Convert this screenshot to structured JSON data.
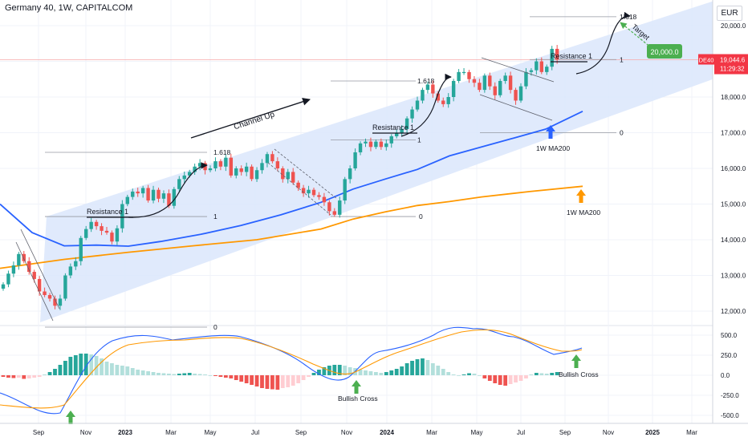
{
  "header": {
    "title": "Germany 40, 1W, CAPITALCOM",
    "currency": "EUR"
  },
  "colors": {
    "up": "#26a69a",
    "down": "#ef5350",
    "channel": "#dbe6fb",
    "ma_blue": "#2962ff",
    "ma_orange": "#ff9800",
    "target_green": "#4caf50",
    "price_tag": "#f23645"
  },
  "price_tag": {
    "symbol": "DE40",
    "price": "19,044.6",
    "countdown": "11:29:32"
  },
  "target_badge": "20,000.0",
  "chart_data": [
    {
      "type": "candlestick",
      "title": "Germany 40, 1W, CAPITALCOM",
      "x_ticks": [
        "Sep",
        "Nov",
        "2023",
        "Mar",
        "May",
        "Jul",
        "Sep",
        "Nov",
        "2024",
        "Mar",
        "May",
        "Jul",
        "Sep",
        "Nov",
        "2025",
        "Mar"
      ],
      "y_ticks": [
        "12,000.0",
        "13,000.0",
        "14,000.0",
        "15,000.0",
        "16,000.0",
        "17,000.0",
        "18,000.0",
        "19,000.0",
        "20,000.0"
      ],
      "ylim": [
        11500,
        20400
      ],
      "close_series": [
        12750,
        13050,
        13280,
        13600,
        13400,
        13100,
        12900,
        12550,
        12450,
        12350,
        12150,
        12350,
        13000,
        13250,
        13400,
        14050,
        14300,
        14500,
        14380,
        14250,
        14200,
        13950,
        14320,
        15000,
        15200,
        15350,
        15300,
        15450,
        15100,
        15400,
        15150,
        15300,
        14950,
        15420,
        15700,
        15800,
        15900,
        16050,
        16150,
        15950,
        16000,
        16200,
        16050,
        16300,
        15800,
        16000,
        15900,
        16050,
        15700,
        15950,
        16150,
        16400,
        16200,
        16000,
        15700,
        15900,
        15600,
        15450,
        15300,
        15400,
        15250,
        15200,
        15050,
        14800,
        14700,
        15100,
        15700,
        16000,
        16450,
        16700,
        16750,
        16600,
        16750,
        16600,
        16700,
        16900,
        17000,
        17100,
        17400,
        17650,
        17900,
        18200,
        18350,
        18100,
        17900,
        17800,
        18000,
        18450,
        18700,
        18700,
        18500,
        18400,
        18200,
        18600,
        18300,
        18050,
        18450,
        18600,
        18200,
        17900,
        18300,
        18700,
        18750,
        19000,
        18700,
        18850,
        19350,
        19050
      ],
      "moving_averages": [
        {
          "name": "1W MA200",
          "color": "#2962ff",
          "points": [
            [
              0,
              15000
            ],
            [
              40,
              14200
            ],
            [
              80,
              13830
            ],
            [
              120,
              13850
            ],
            [
              160,
              13820
            ],
            [
              200,
              13950
            ],
            [
              250,
              14150
            ],
            [
              300,
              14400
            ],
            [
              350,
              14700
            ],
            [
              400,
              15050
            ],
            [
              440,
              15420
            ],
            [
              480,
              15700
            ],
            [
              520,
              15970
            ],
            [
              560,
              16350
            ],
            [
              600,
              16600
            ],
            [
              640,
              16850
            ],
            [
              680,
              17100
            ],
            [
              726,
              17600
            ]
          ]
        },
        {
          "name": "1W MA200",
          "color": "#ff9800",
          "points": [
            [
              0,
              13200
            ],
            [
              80,
              13450
            ],
            [
              160,
              13650
            ],
            [
              240,
              13830
            ],
            [
              320,
              14000
            ],
            [
              400,
              14300
            ],
            [
              440,
              14580
            ],
            [
              480,
              14780
            ],
            [
              520,
              14960
            ],
            [
              560,
              15070
            ],
            [
              600,
              15200
            ],
            [
              660,
              15350
            ],
            [
              726,
              15500
            ]
          ]
        }
      ],
      "annotations": [
        "Channel Up",
        "Resistance 1",
        "Resistance 1",
        "Resistance 1",
        "1W MA200",
        "1W MA200",
        "Target"
      ],
      "fib_levels": [
        {
          "label": "0",
          "value": 11550
        },
        {
          "label": "1",
          "value": 14650
        },
        {
          "label": "1.618",
          "value": 16450
        },
        {
          "label": "0",
          "value": 14650
        },
        {
          "label": "1",
          "value": 16800
        },
        {
          "label": "1.618",
          "value": 18450
        },
        {
          "label": "0",
          "value": 17000
        },
        {
          "label": "1",
          "value": 19050
        },
        {
          "label": "1.618",
          "value": 20250
        }
      ]
    },
    {
      "type": "macd",
      "y_ticks": [
        "500.0",
        "250.0",
        "0.0",
        "-250.0",
        "-500.0"
      ],
      "ylim": [
        -560,
        650
      ],
      "histogram": [
        -20,
        -30,
        -35,
        -30,
        -45,
        -40,
        -30,
        -20,
        10,
        40,
        80,
        130,
        180,
        230,
        250,
        270,
        270,
        260,
        240,
        210,
        170,
        150,
        130,
        120,
        110,
        90,
        70,
        60,
        50,
        40,
        30,
        25,
        20,
        15,
        20,
        25,
        30,
        20,
        15,
        10,
        0,
        -10,
        -20,
        -30,
        -40,
        -60,
        -80,
        -100,
        -120,
        -140,
        -160,
        -170,
        -175,
        -180,
        -160,
        -150,
        -130,
        -100,
        -60,
        -20,
        30,
        70,
        100,
        120,
        130,
        130,
        120,
        100,
        90,
        70,
        60,
        50,
        40,
        30,
        40,
        60,
        80,
        110,
        150,
        180,
        200,
        210,
        190,
        150,
        120,
        80,
        40,
        10,
        0,
        10,
        25,
        20,
        0,
        -40,
        -70,
        -100,
        -120,
        -130,
        -110,
        -90,
        -70,
        -40,
        10,
        30,
        25,
        20,
        30,
        40
      ],
      "annotations": [
        "Bullish Cross",
        "Bullish Cross"
      ]
    }
  ]
}
